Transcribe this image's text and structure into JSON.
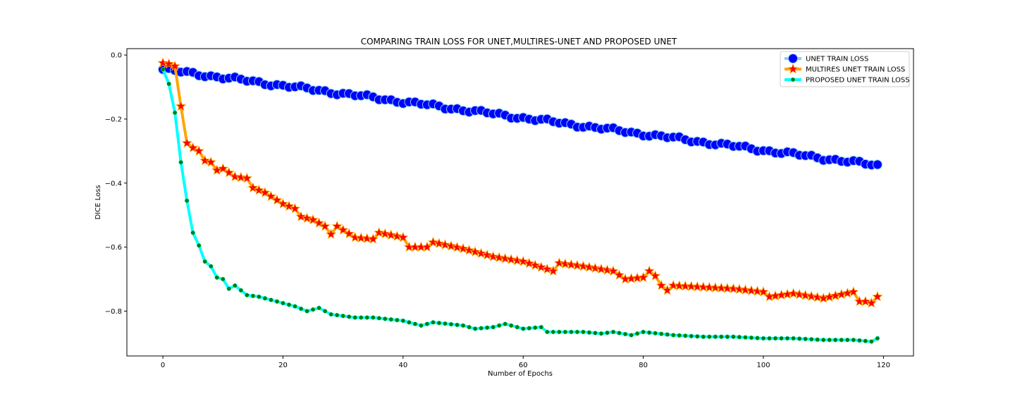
{
  "chart_data": {
    "type": "line",
    "title": "COMPARING TRAIN LOSS FOR UNET,MULTIRES-UNET AND PROPOSED UNET",
    "xlabel": "Number of Epochs",
    "ylabel": "DICE Loss",
    "xlim": [
      -6,
      125
    ],
    "ylim": [
      -0.94,
      0.02
    ],
    "xticks": [
      0,
      20,
      40,
      60,
      80,
      100,
      120
    ],
    "yticks": [
      0.0,
      -0.2,
      -0.4,
      -0.6,
      -0.8
    ],
    "xtick_labels": [
      "0",
      "20",
      "40",
      "60",
      "80",
      "100",
      "120"
    ],
    "ytick_labels": [
      "0.0",
      "−0.2",
      "−0.4",
      "−0.6",
      "−0.8"
    ],
    "grid": false,
    "legend_position": "top-right",
    "series": [
      {
        "name": "UNET TRAIN LOSS",
        "line_color": "#87ceeb",
        "marker": "circle",
        "marker_color": "#0000ff",
        "start": -0.045,
        "end": -0.345
      },
      {
        "name": "MULTIRES UNET TRAIN LOSS",
        "line_color": "#ffa500",
        "marker": "star",
        "marker_color": "#ff0000",
        "points": [
          [
            0,
            -0.025
          ],
          [
            1,
            -0.028
          ],
          [
            2,
            -0.035
          ],
          [
            3,
            -0.16
          ],
          [
            4,
            -0.275
          ],
          [
            5,
            -0.29
          ],
          [
            6,
            -0.3
          ],
          [
            7,
            -0.33
          ],
          [
            8,
            -0.335
          ],
          [
            9,
            -0.36
          ],
          [
            10,
            -0.355
          ],
          [
            12,
            -0.38
          ],
          [
            14,
            -0.385
          ],
          [
            15,
            -0.415
          ],
          [
            17,
            -0.43
          ],
          [
            20,
            -0.465
          ],
          [
            22,
            -0.48
          ],
          [
            23,
            -0.505
          ],
          [
            25,
            -0.515
          ],
          [
            27,
            -0.535
          ],
          [
            28,
            -0.56
          ],
          [
            29,
            -0.535
          ],
          [
            32,
            -0.57
          ],
          [
            35,
            -0.575
          ],
          [
            36,
            -0.555
          ],
          [
            40,
            -0.57
          ],
          [
            41,
            -0.6
          ],
          [
            44,
            -0.6
          ],
          [
            45,
            -0.585
          ],
          [
            50,
            -0.605
          ],
          [
            55,
            -0.63
          ],
          [
            60,
            -0.645
          ],
          [
            65,
            -0.675
          ],
          [
            66,
            -0.65
          ],
          [
            70,
            -0.66
          ],
          [
            75,
            -0.675
          ],
          [
            77,
            -0.7
          ],
          [
            80,
            -0.695
          ],
          [
            81,
            -0.675
          ],
          [
            82,
            -0.69
          ],
          [
            83,
            -0.72
          ],
          [
            84,
            -0.735
          ],
          [
            85,
            -0.72
          ],
          [
            90,
            -0.725
          ],
          [
            95,
            -0.73
          ],
          [
            100,
            -0.74
          ],
          [
            101,
            -0.755
          ],
          [
            105,
            -0.745
          ],
          [
            110,
            -0.76
          ],
          [
            115,
            -0.74
          ],
          [
            116,
            -0.77
          ],
          [
            117,
            -0.77
          ],
          [
            118,
            -0.775
          ],
          [
            119,
            -0.755
          ]
        ]
      },
      {
        "name": "PROPOSED UNET TRAIN LOSS",
        "line_color": "#00ffff",
        "marker": "circle-small",
        "marker_color": "#008000",
        "points": [
          [
            0,
            -0.045
          ],
          [
            1,
            -0.09
          ],
          [
            2,
            -0.18
          ],
          [
            3,
            -0.335
          ],
          [
            4,
            -0.455
          ],
          [
            5,
            -0.555
          ],
          [
            6,
            -0.595
          ],
          [
            7,
            -0.645
          ],
          [
            8,
            -0.66
          ],
          [
            9,
            -0.695
          ],
          [
            10,
            -0.7
          ],
          [
            11,
            -0.73
          ],
          [
            12,
            -0.72
          ],
          [
            13,
            -0.735
          ],
          [
            14,
            -0.75
          ],
          [
            16,
            -0.755
          ],
          [
            18,
            -0.765
          ],
          [
            20,
            -0.775
          ],
          [
            22,
            -0.785
          ],
          [
            24,
            -0.8
          ],
          [
            26,
            -0.79
          ],
          [
            28,
            -0.81
          ],
          [
            30,
            -0.815
          ],
          [
            32,
            -0.82
          ],
          [
            35,
            -0.82
          ],
          [
            40,
            -0.83
          ],
          [
            43,
            -0.845
          ],
          [
            45,
            -0.835
          ],
          [
            50,
            -0.845
          ],
          [
            52,
            -0.855
          ],
          [
            55,
            -0.85
          ],
          [
            57,
            -0.84
          ],
          [
            60,
            -0.855
          ],
          [
            63,
            -0.85
          ],
          [
            64,
            -0.865
          ],
          [
            70,
            -0.865
          ],
          [
            73,
            -0.87
          ],
          [
            75,
            -0.865
          ],
          [
            78,
            -0.875
          ],
          [
            80,
            -0.865
          ],
          [
            85,
            -0.875
          ],
          [
            90,
            -0.88
          ],
          [
            95,
            -0.88
          ],
          [
            100,
            -0.885
          ],
          [
            105,
            -0.885
          ],
          [
            110,
            -0.89
          ],
          [
            115,
            -0.89
          ],
          [
            118,
            -0.895
          ],
          [
            119,
            -0.885
          ]
        ]
      }
    ]
  }
}
